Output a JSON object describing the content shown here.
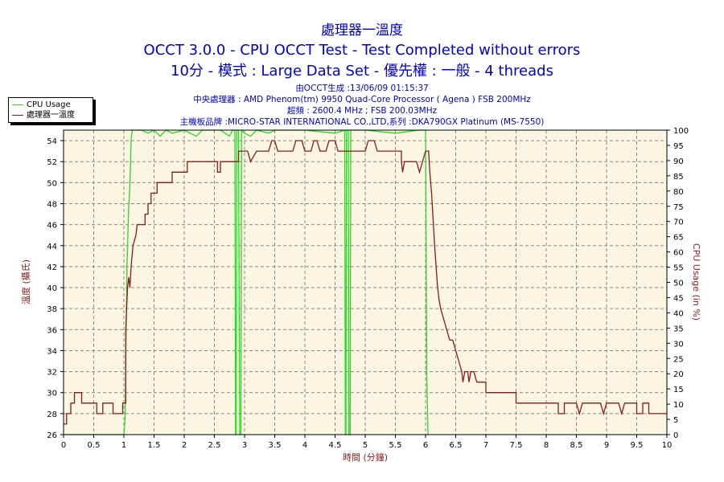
{
  "window": {
    "title": "處理器一溫度",
    "subtitle": "OCCT 3.0.0 - CPU OCCT Test - Test Completed without errors",
    "subtitle2": "10分 - 模式 : Large Data Set - 優先權 : 一般 - 4 threads"
  },
  "info": {
    "line1": "由OCCT生成 :13/06/09 01:15:37",
    "line2": "中央處理器 : AMD Phenom(tm) 9950 Quad-Core Processor ( Agena ) FSB 200MHz",
    "line3": "超頻 : 2600.4 MHz ; FSB 200.03MHz",
    "line4": "主機板品牌 :MICRO-STAR INTERNATIONAL CO.,LTD,系列 :DKA790GX Platinum (MS-7550)"
  },
  "colors": {
    "cpu": "#22dd22",
    "temp": "#8b1a1a",
    "plot_bg": "#fbf5e2",
    "grid": "#888888",
    "title": "#0000cc"
  },
  "chart_data": {
    "type": "line",
    "xlabel": "時間 (分鐘)",
    "ylabel": "溫度 (攝氏)",
    "y2label": "CPU Usage (in %)",
    "xlim": [
      0,
      10
    ],
    "ylim": [
      26,
      55
    ],
    "y2lim": [
      0,
      100
    ],
    "x_ticks": [
      "0",
      "0.5",
      "1",
      "1.5",
      "2",
      "2.5",
      "3",
      "3.5",
      "4",
      "4.5",
      "5",
      "5.5",
      "6",
      "6.5",
      "7",
      "7.5",
      "8",
      "8.5",
      "9",
      "9.5",
      "10"
    ],
    "y_ticks": [
      "26",
      "28",
      "30",
      "32",
      "34",
      "36",
      "38",
      "40",
      "42",
      "44",
      "46",
      "48",
      "50",
      "52",
      "54"
    ],
    "y2_ticks": [
      "0",
      "5",
      "10",
      "15",
      "20",
      "25",
      "30",
      "35",
      "40",
      "45",
      "50",
      "55",
      "60",
      "65",
      "70",
      "75",
      "80",
      "85",
      "90",
      "95",
      "100"
    ],
    "grid": true,
    "legend_position": "top-left",
    "series": [
      {
        "name": "CPU Usage",
        "axis": "right",
        "points": [
          [
            0,
            0
          ],
          [
            1.0,
            0
          ],
          [
            1.02,
            5
          ],
          [
            1.05,
            55
          ],
          [
            1.08,
            75
          ],
          [
            1.1,
            82
          ],
          [
            1.12,
            97
          ],
          [
            1.14,
            100
          ],
          [
            1.3,
            100
          ],
          [
            1.4,
            99
          ],
          [
            1.5,
            100
          ],
          [
            1.6,
            98
          ],
          [
            1.7,
            100
          ],
          [
            1.8,
            99
          ],
          [
            2.0,
            100
          ],
          [
            2.2,
            98
          ],
          [
            2.3,
            100
          ],
          [
            2.6,
            100
          ],
          [
            2.75,
            98
          ],
          [
            2.8,
            100
          ],
          [
            2.84,
            100
          ],
          [
            2.85,
            0
          ],
          [
            2.86,
            0
          ],
          [
            2.87,
            100
          ],
          [
            2.9,
            100
          ],
          [
            2.92,
            0
          ],
          [
            2.94,
            0
          ],
          [
            2.95,
            100
          ],
          [
            3.0,
            99
          ],
          [
            3.1,
            98
          ],
          [
            3.2,
            100
          ],
          [
            3.4,
            99
          ],
          [
            3.5,
            100
          ],
          [
            4.0,
            100
          ],
          [
            4.5,
            99
          ],
          [
            4.66,
            100
          ],
          [
            4.67,
            0
          ],
          [
            4.68,
            0
          ],
          [
            4.69,
            100
          ],
          [
            4.72,
            100
          ],
          [
            4.73,
            0
          ],
          [
            4.75,
            0
          ],
          [
            4.76,
            100
          ],
          [
            5.0,
            100
          ],
          [
            5.5,
            99
          ],
          [
            5.9,
            100
          ],
          [
            6.0,
            100
          ],
          [
            6.02,
            20
          ],
          [
            6.04,
            0
          ],
          [
            6.06,
            0
          ]
        ]
      },
      {
        "name": "處理器一溫度",
        "axis": "left",
        "points": [
          [
            0,
            27
          ],
          [
            0.05,
            27
          ],
          [
            0.05,
            28
          ],
          [
            0.12,
            28
          ],
          [
            0.12,
            29
          ],
          [
            0.18,
            29
          ],
          [
            0.18,
            30
          ],
          [
            0.3,
            30
          ],
          [
            0.3,
            29
          ],
          [
            0.55,
            29
          ],
          [
            0.55,
            28
          ],
          [
            0.65,
            28
          ],
          [
            0.65,
            29
          ],
          [
            0.82,
            29
          ],
          [
            0.82,
            28
          ],
          [
            0.98,
            28
          ],
          [
            0.98,
            29
          ],
          [
            1.03,
            29
          ],
          [
            1.03,
            36
          ],
          [
            1.06,
            40
          ],
          [
            1.08,
            41
          ],
          [
            1.1,
            40
          ],
          [
            1.12,
            42
          ],
          [
            1.15,
            44
          ],
          [
            1.2,
            45
          ],
          [
            1.22,
            46
          ],
          [
            1.35,
            46
          ],
          [
            1.35,
            47
          ],
          [
            1.4,
            47
          ],
          [
            1.4,
            48
          ],
          [
            1.45,
            48
          ],
          [
            1.45,
            49
          ],
          [
            1.5,
            49
          ],
          [
            1.55,
            49
          ],
          [
            1.55,
            50
          ],
          [
            1.8,
            50
          ],
          [
            1.8,
            51
          ],
          [
            2.05,
            51
          ],
          [
            2.05,
            52
          ],
          [
            2.55,
            52
          ],
          [
            2.55,
            51
          ],
          [
            2.6,
            51
          ],
          [
            2.6,
            52
          ],
          [
            2.9,
            52
          ],
          [
            2.9,
            53
          ],
          [
            3.05,
            53
          ],
          [
            3.1,
            52
          ],
          [
            3.2,
            53
          ],
          [
            3.4,
            53
          ],
          [
            3.45,
            54
          ],
          [
            3.5,
            54
          ],
          [
            3.55,
            53
          ],
          [
            3.8,
            53
          ],
          [
            3.85,
            54
          ],
          [
            3.95,
            54
          ],
          [
            4.0,
            53
          ],
          [
            4.1,
            53
          ],
          [
            4.15,
            54
          ],
          [
            4.2,
            54
          ],
          [
            4.25,
            53
          ],
          [
            4.35,
            53
          ],
          [
            4.4,
            54
          ],
          [
            4.5,
            54
          ],
          [
            4.55,
            53
          ],
          [
            5.0,
            53
          ],
          [
            5.05,
            54
          ],
          [
            5.15,
            54
          ],
          [
            5.2,
            53
          ],
          [
            5.6,
            53
          ],
          [
            5.6,
            52
          ],
          [
            5.62,
            51
          ],
          [
            5.65,
            52
          ],
          [
            5.85,
            52
          ],
          [
            5.9,
            51
          ],
          [
            5.95,
            52
          ],
          [
            6.0,
            53
          ],
          [
            6.05,
            53
          ],
          [
            6.07,
            51
          ],
          [
            6.1,
            49
          ],
          [
            6.15,
            44
          ],
          [
            6.2,
            40
          ],
          [
            6.22,
            39
          ],
          [
            6.25,
            38
          ],
          [
            6.3,
            37
          ],
          [
            6.35,
            36
          ],
          [
            6.4,
            35
          ],
          [
            6.45,
            35
          ],
          [
            6.5,
            34
          ],
          [
            6.55,
            33
          ],
          [
            6.6,
            32
          ],
          [
            6.62,
            31
          ],
          [
            6.65,
            32
          ],
          [
            6.7,
            32
          ],
          [
            6.72,
            31
          ],
          [
            6.75,
            32
          ],
          [
            6.8,
            32
          ],
          [
            6.85,
            31
          ],
          [
            7.0,
            31
          ],
          [
            7.0,
            30
          ],
          [
            7.5,
            30
          ],
          [
            7.5,
            29
          ],
          [
            8.2,
            29
          ],
          [
            8.2,
            28
          ],
          [
            8.3,
            28
          ],
          [
            8.3,
            29
          ],
          [
            8.5,
            29
          ],
          [
            8.55,
            28
          ],
          [
            8.6,
            29
          ],
          [
            8.9,
            29
          ],
          [
            8.95,
            28
          ],
          [
            9.0,
            29
          ],
          [
            9.2,
            29
          ],
          [
            9.25,
            28
          ],
          [
            9.3,
            29
          ],
          [
            9.5,
            29
          ],
          [
            9.5,
            28
          ],
          [
            9.6,
            28
          ],
          [
            9.6,
            29
          ],
          [
            9.7,
            29
          ],
          [
            9.7,
            28
          ],
          [
            10,
            28
          ]
        ]
      }
    ]
  }
}
